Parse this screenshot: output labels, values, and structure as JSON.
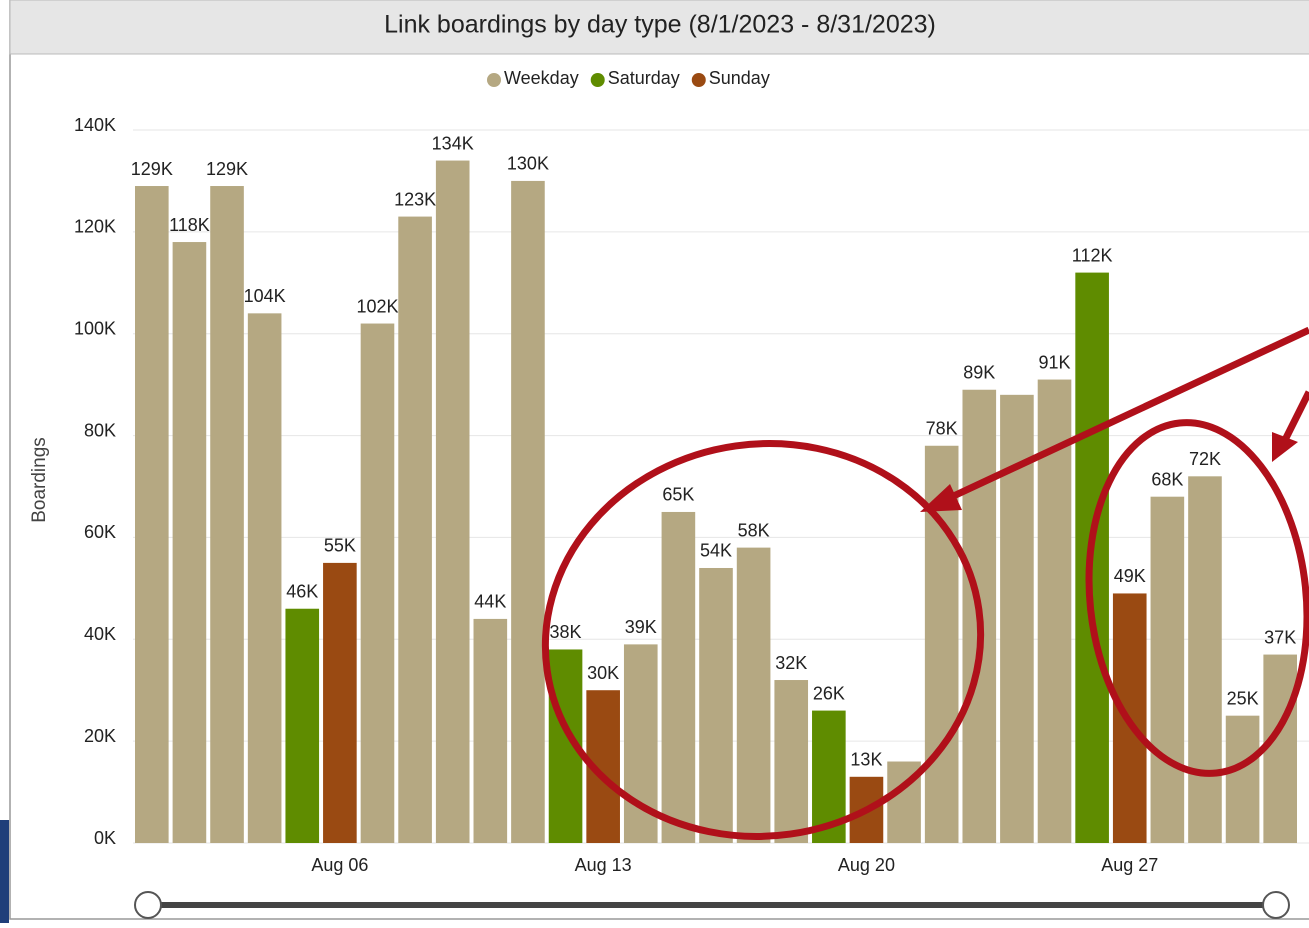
{
  "chart_data": {
    "type": "bar",
    "title": "Link boardings by day type (8/1/2023 - 8/31/2023)",
    "y_label": "Boardings",
    "categories": [
      null,
      null,
      null,
      null,
      null,
      "Aug 06",
      null,
      null,
      null,
      null,
      null,
      null,
      "Aug 13",
      null,
      null,
      null,
      null,
      null,
      null,
      "Aug 20",
      null,
      null,
      null,
      null,
      null,
      null,
      "Aug 27",
      null,
      null,
      null,
      null
    ],
    "series": [
      {
        "name": "Weekday",
        "color": "#b5a882",
        "values": [
          129000,
          118000,
          129000,
          104000,
          null,
          null,
          102000,
          123000,
          134000,
          44000,
          130000,
          null,
          null,
          39000,
          65000,
          54000,
          58000,
          32000,
          null,
          null,
          16000,
          78000,
          89000,
          88000,
          91000,
          null,
          null,
          68000,
          72000,
          25000,
          37000
        ],
        "value_labels": [
          "129K",
          "118K",
          "129K",
          "104K",
          null,
          null,
          "102K",
          "123K",
          "134K",
          "44K",
          "130K",
          null,
          null,
          "39K",
          "65K",
          "54K",
          "58K",
          "32K",
          null,
          null,
          null,
          "78K",
          "89K",
          null,
          "91K",
          null,
          null,
          "68K",
          "72K",
          "25K",
          "37K"
        ]
      },
      {
        "name": "Saturday",
        "color": "#5f8c00",
        "values": [
          null,
          null,
          null,
          null,
          46000,
          null,
          null,
          null,
          null,
          null,
          null,
          38000,
          null,
          null,
          null,
          null,
          null,
          null,
          26000,
          null,
          null,
          null,
          null,
          null,
          null,
          112000,
          null,
          null,
          null,
          null,
          null
        ],
        "value_labels": [
          null,
          null,
          null,
          null,
          "46K",
          null,
          null,
          null,
          null,
          null,
          null,
          "38K",
          null,
          null,
          null,
          null,
          null,
          null,
          "26K",
          null,
          null,
          null,
          null,
          null,
          null,
          "112K",
          null,
          null,
          null,
          null,
          null
        ]
      },
      {
        "name": "Sunday",
        "color": "#9a4a12",
        "values": [
          null,
          null,
          null,
          null,
          null,
          55000,
          null,
          null,
          null,
          null,
          null,
          null,
          30000,
          null,
          null,
          null,
          null,
          null,
          null,
          13000,
          null,
          null,
          null,
          null,
          null,
          null,
          49000,
          null,
          null,
          null,
          null
        ],
        "value_labels": [
          null,
          null,
          null,
          null,
          null,
          "55K",
          null,
          null,
          null,
          null,
          null,
          null,
          "30K",
          null,
          null,
          null,
          null,
          null,
          null,
          "13K",
          null,
          null,
          null,
          null,
          null,
          null,
          "49K",
          null,
          null,
          null,
          null
        ]
      }
    ],
    "ylim": [
      0,
      140000
    ],
    "yticks": [
      {
        "value": 0,
        "label": "0K"
      },
      {
        "value": 20000,
        "label": "20K"
      },
      {
        "value": 40000,
        "label": "40K"
      },
      {
        "value": 60000,
        "label": "60K"
      },
      {
        "value": 80000,
        "label": "80K"
      },
      {
        "value": 100000,
        "label": "100K"
      },
      {
        "value": 120000,
        "label": "120K"
      },
      {
        "value": 140000,
        "label": "140K"
      }
    ],
    "grid": true,
    "legend": "top"
  }
}
